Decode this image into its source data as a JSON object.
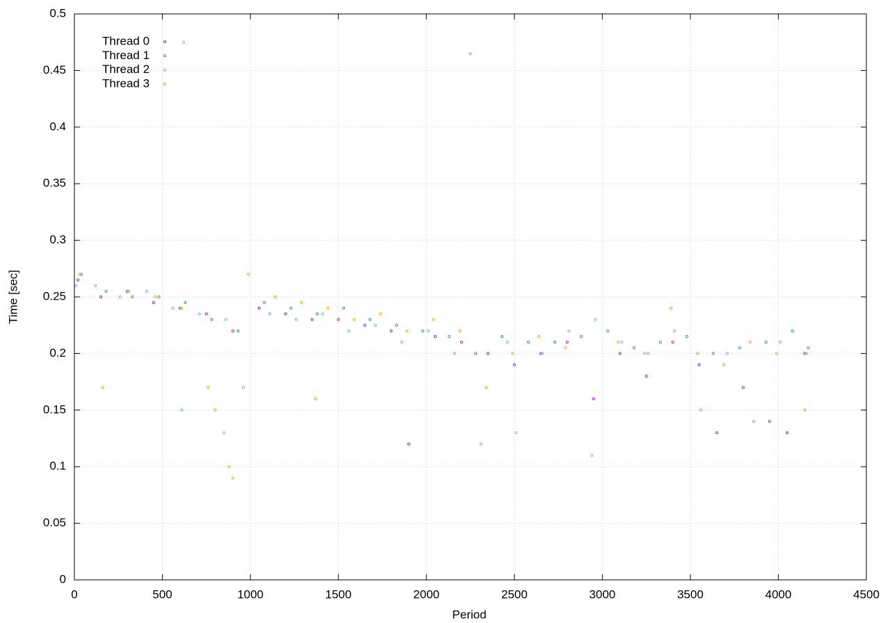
{
  "chart_data": {
    "type": "scatter",
    "x_label": "Period",
    "y_label": "Time [sec]",
    "xlim": [
      0,
      4500
    ],
    "xticks": [
      0,
      500,
      1000,
      1500,
      2000,
      2500,
      3000,
      3500,
      4000,
      4500
    ],
    "ylim": [
      0,
      0.5
    ],
    "yticks": [
      0,
      0.05,
      0.1,
      0.15,
      0.2,
      0.25,
      0.3,
      0.35,
      0.4,
      0.45,
      0.5
    ],
    "grid": true,
    "legend": "top-left",
    "series": [
      {
        "name": "Thread 0",
        "color": "#9400d3",
        "x": [
          20,
          150,
          300,
          450,
          600,
          750,
          900,
          1050,
          1200,
          1350,
          1500,
          1650,
          1800,
          1900,
          2050,
          2200,
          2350,
          2500,
          2650,
          2800,
          2950,
          3100,
          3250,
          3400,
          3550,
          3650,
          3800,
          3950,
          4050,
          4150
        ],
        "values": [
          0.265,
          0.25,
          0.255,
          0.245,
          0.24,
          0.235,
          0.22,
          0.24,
          0.235,
          0.23,
          0.23,
          0.225,
          0.22,
          0.12,
          0.215,
          0.21,
          0.2,
          0.19,
          0.2,
          0.21,
          0.16,
          0.2,
          0.18,
          0.21,
          0.19,
          0.13,
          0.17,
          0.14,
          0.13,
          0.2
        ]
      },
      {
        "name": "Thread 1",
        "color": "#009e73",
        "x": [
          40,
          180,
          330,
          480,
          630,
          780,
          930,
          1080,
          1230,
          1380,
          1530,
          1680,
          1830,
          1980,
          2130,
          2280,
          2430,
          2580,
          2730,
          2880,
          3030,
          3180,
          3330,
          3480,
          3630,
          3780,
          3930,
          4080,
          4170
        ],
        "values": [
          0.27,
          0.255,
          0.25,
          0.25,
          0.245,
          0.23,
          0.22,
          0.245,
          0.24,
          0.235,
          0.24,
          0.23,
          0.225,
          0.22,
          0.215,
          0.2,
          0.215,
          0.21,
          0.21,
          0.215,
          0.22,
          0.205,
          0.21,
          0.215,
          0.2,
          0.205,
          0.21,
          0.22,
          0.205
        ]
      },
      {
        "name": "Thread 2",
        "color": "#56b4e9",
        "x": [
          10,
          120,
          260,
          410,
          560,
          610,
          710,
          860,
          960,
          1110,
          1260,
          1410,
          1560,
          1710,
          1860,
          2010,
          2160,
          2310,
          2460,
          2510,
          2660,
          2810,
          2960,
          3110,
          3260,
          3410,
          3560,
          3710,
          3860,
          4010,
          4160,
          620,
          2250
        ],
        "values": [
          0.26,
          0.26,
          0.25,
          0.255,
          0.24,
          0.15,
          0.235,
          0.23,
          0.17,
          0.235,
          0.23,
          0.235,
          0.22,
          0.225,
          0.21,
          0.22,
          0.2,
          0.12,
          0.21,
          0.13,
          0.2,
          0.22,
          0.23,
          0.21,
          0.2,
          0.22,
          0.15,
          0.2,
          0.14,
          0.21,
          0.2,
          0.475,
          0.465
        ]
      },
      {
        "name": "Thread 3",
        "color": "#e69f00",
        "x": [
          30,
          160,
          310,
          460,
          610,
          760,
          800,
          850,
          880,
          900,
          990,
          1140,
          1290,
          1370,
          1440,
          1590,
          1740,
          1890,
          2040,
          2190,
          2340,
          2490,
          2640,
          2790,
          2940,
          3090,
          3240,
          3390,
          3540,
          3690,
          3840,
          3990,
          4150
        ],
        "values": [
          0.27,
          0.17,
          0.255,
          0.25,
          0.24,
          0.17,
          0.15,
          0.13,
          0.1,
          0.09,
          0.27,
          0.25,
          0.245,
          0.16,
          0.24,
          0.23,
          0.235,
          0.22,
          0.23,
          0.22,
          0.17,
          0.2,
          0.215,
          0.205,
          0.11,
          0.21,
          0.2,
          0.24,
          0.2,
          0.19,
          0.21,
          0.2,
          0.15
        ]
      }
    ]
  }
}
